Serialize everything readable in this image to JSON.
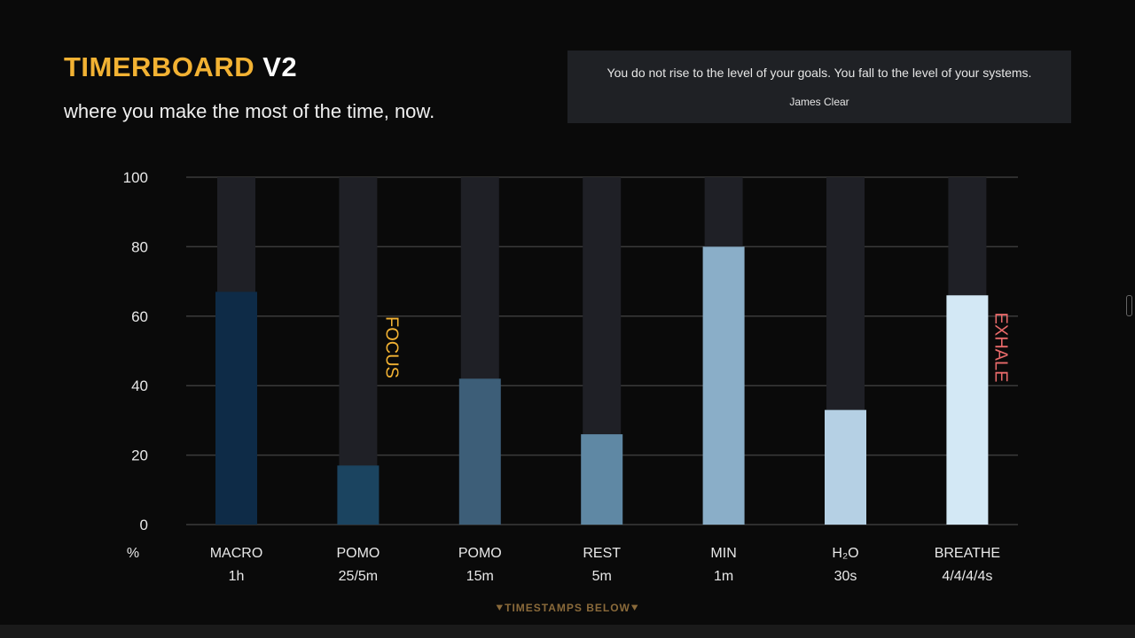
{
  "header": {
    "brand": "TIMERBOARD",
    "version": "V2",
    "subtitle": "where you make the most of the time, now."
  },
  "quote": {
    "text": "You do not rise to the level of your goals. You fall to the level of your systems.",
    "author": "James Clear"
  },
  "footer": {
    "label": "TIMESTAMPS BELOW",
    "icon": "double-chevron-down-icon"
  },
  "colors": {
    "brand": "#f2b233",
    "focus": "#f2b233",
    "exhale": "#e86a6a",
    "track": "#1f2026",
    "grid": "#3a3a3a"
  },
  "chart_data": {
    "type": "bar",
    "ylabel": "%",
    "ylim": [
      0,
      100
    ],
    "yticks": [
      "0",
      "20",
      "40",
      "60",
      "80",
      "100"
    ],
    "grid": true,
    "categories": [
      {
        "name": "MACRO",
        "duration": "1h"
      },
      {
        "name": "POMO",
        "duration": "25/5m"
      },
      {
        "name": "POMO",
        "duration": "15m"
      },
      {
        "name": "REST",
        "duration": "5m"
      },
      {
        "name": "MIN",
        "duration": "1m"
      },
      {
        "name": "H₂O",
        "duration": "30s"
      },
      {
        "name": "BREATHE",
        "duration": "4/4/4/4s"
      }
    ],
    "values": [
      67,
      17,
      42,
      26,
      80,
      33,
      66
    ],
    "bar_colors": [
      "#0e2b47",
      "#1b4460",
      "#3d5e78",
      "#5f88a4",
      "#8aaec8",
      "#b5d0e4",
      "#d3e8f5"
    ],
    "annotations": [
      {
        "text": "FOCUS",
        "category_index": 1,
        "color": "#f2b233"
      },
      {
        "text": "EXHALE",
        "category_index": 6,
        "color": "#e86a6a"
      }
    ]
  }
}
